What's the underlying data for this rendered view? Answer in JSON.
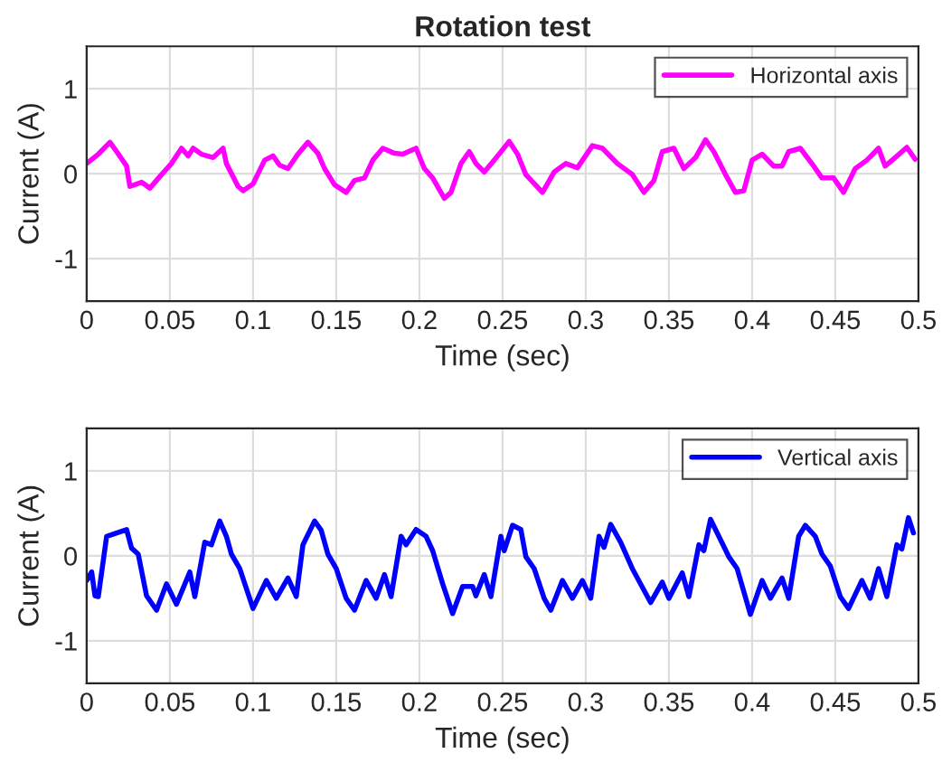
{
  "chart_data": [
    {
      "type": "line",
      "title": "Rotation test",
      "xlabel": "Time (sec)",
      "ylabel": "Current (A)",
      "xlim": [
        0,
        0.5
      ],
      "xticks": [
        0,
        0.05,
        0.1,
        0.15,
        0.2,
        0.25,
        0.3,
        0.35,
        0.4,
        0.45,
        0.5
      ],
      "ylim": [
        -1.5,
        1.5
      ],
      "yticks": [
        -1,
        0,
        1
      ],
      "grid": true,
      "legend": "top right",
      "series": [
        {
          "name": "Horizontal axis",
          "color": "#ff00ff",
          "x": [
            0,
            0.007,
            0.014,
            0.018,
            0.024,
            0.026,
            0.033,
            0.038,
            0.045,
            0.051,
            0.057,
            0.061,
            0.064,
            0.069,
            0.076,
            0.082,
            0.084,
            0.091,
            0.094,
            0.1,
            0.107,
            0.112,
            0.116,
            0.121,
            0.127,
            0.133,
            0.139,
            0.143,
            0.149,
            0.156,
            0.161,
            0.167,
            0.172,
            0.178,
            0.185,
            0.19,
            0.198,
            0.203,
            0.208,
            0.215,
            0.219,
            0.225,
            0.23,
            0.234,
            0.239,
            0.245,
            0.254,
            0.259,
            0.264,
            0.274,
            0.281,
            0.288,
            0.295,
            0.304,
            0.31,
            0.319,
            0.328,
            0.335,
            0.341,
            0.346,
            0.353,
            0.359,
            0.366,
            0.372,
            0.377,
            0.384,
            0.39,
            0.395,
            0.4,
            0.406,
            0.413,
            0.418,
            0.422,
            0.429,
            0.437,
            0.442,
            0.449,
            0.455,
            0.462,
            0.469,
            0.476,
            0.48,
            0.486,
            0.493,
            0.498
          ],
          "values": [
            0.12,
            0.23,
            0.37,
            0.26,
            0.09,
            -0.15,
            -0.1,
            -0.17,
            -0.01,
            0.12,
            0.3,
            0.21,
            0.3,
            0.23,
            0.19,
            0.3,
            0.12,
            -0.15,
            -0.2,
            -0.12,
            0.16,
            0.21,
            0.1,
            0.06,
            0.23,
            0.37,
            0.24,
            0.06,
            -0.13,
            -0.22,
            -0.08,
            -0.05,
            0.16,
            0.3,
            0.24,
            0.23,
            0.3,
            0.06,
            -0.05,
            -0.29,
            -0.22,
            0.12,
            0.26,
            0.12,
            0.02,
            0.16,
            0.38,
            0.23,
            -0.01,
            -0.22,
            0.02,
            0.12,
            0.07,
            0.33,
            0.3,
            0.12,
            -0.01,
            -0.22,
            -0.08,
            0.26,
            0.3,
            0.06,
            0.19,
            0.4,
            0.26,
            -0.01,
            -0.22,
            -0.2,
            0.16,
            0.23,
            0.09,
            0.09,
            0.26,
            0.3,
            0.09,
            -0.05,
            -0.05,
            -0.22,
            0.06,
            0.16,
            0.3,
            0.09,
            0.19,
            0.31,
            0.17
          ]
        }
      ]
    },
    {
      "type": "line",
      "xlabel": "Time (sec)",
      "ylabel": "Current (A)",
      "xlim": [
        0,
        0.5
      ],
      "xticks": [
        0,
        0.05,
        0.1,
        0.15,
        0.2,
        0.25,
        0.3,
        0.35,
        0.4,
        0.45,
        0.5
      ],
      "ylim": [
        -1.5,
        1.5
      ],
      "yticks": [
        -1,
        0,
        1
      ],
      "grid": true,
      "legend": "top right",
      "series": [
        {
          "name": "Vertical axis",
          "color": "#0000ff",
          "x": [
            0,
            0.003,
            0.005,
            0.007,
            0.012,
            0.018,
            0.024,
            0.027,
            0.031,
            0.036,
            0.042,
            0.048,
            0.054,
            0.062,
            0.065,
            0.071,
            0.075,
            0.08,
            0.084,
            0.087,
            0.092,
            0.1,
            0.108,
            0.114,
            0.121,
            0.126,
            0.13,
            0.137,
            0.141,
            0.145,
            0.15,
            0.156,
            0.161,
            0.168,
            0.174,
            0.179,
            0.183,
            0.189,
            0.192,
            0.198,
            0.204,
            0.208,
            0.214,
            0.22,
            0.226,
            0.232,
            0.234,
            0.239,
            0.243,
            0.249,
            0.251,
            0.256,
            0.261,
            0.264,
            0.269,
            0.275,
            0.279,
            0.286,
            0.292,
            0.298,
            0.303,
            0.308,
            0.311,
            0.315,
            0.321,
            0.328,
            0.339,
            0.346,
            0.35,
            0.358,
            0.362,
            0.368,
            0.371,
            0.375,
            0.38,
            0.386,
            0.391,
            0.399,
            0.406,
            0.411,
            0.418,
            0.422,
            0.428,
            0.432,
            0.438,
            0.442,
            0.447,
            0.453,
            0.458,
            0.466,
            0.471,
            0.476,
            0.481,
            0.487,
            0.49,
            0.494,
            0.497
          ],
          "values": [
            -0.29,
            -0.19,
            -0.47,
            -0.48,
            0.23,
            0.27,
            0.31,
            0.09,
            0.02,
            -0.47,
            -0.64,
            -0.33,
            -0.57,
            -0.19,
            -0.48,
            0.16,
            0.13,
            0.41,
            0.23,
            0.02,
            -0.15,
            -0.62,
            -0.29,
            -0.5,
            -0.26,
            -0.48,
            0.13,
            0.41,
            0.3,
            0.02,
            -0.15,
            -0.5,
            -0.64,
            -0.29,
            -0.5,
            -0.22,
            -0.48,
            0.23,
            0.13,
            0.31,
            0.23,
            0.06,
            -0.33,
            -0.68,
            -0.36,
            -0.36,
            -0.47,
            -0.22,
            -0.48,
            0.23,
            0.06,
            0.36,
            0.31,
            -0.01,
            -0.15,
            -0.5,
            -0.64,
            -0.29,
            -0.5,
            -0.29,
            -0.5,
            0.23,
            0.1,
            0.37,
            0.16,
            -0.15,
            -0.55,
            -0.31,
            -0.5,
            -0.2,
            -0.48,
            0.13,
            0.06,
            0.43,
            0.23,
            -0.01,
            -0.15,
            -0.69,
            -0.29,
            -0.5,
            -0.26,
            -0.5,
            0.23,
            0.36,
            0.23,
            0.02,
            -0.12,
            -0.48,
            -0.62,
            -0.29,
            -0.5,
            -0.15,
            -0.48,
            0.13,
            0.08,
            0.45,
            0.27
          ]
        }
      ]
    }
  ]
}
